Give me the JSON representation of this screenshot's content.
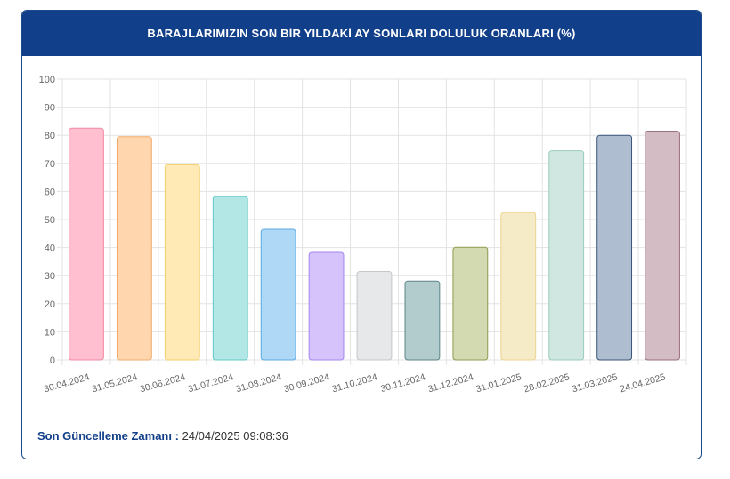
{
  "header": {
    "title": "BARAJLARIMIZIN SON BİR YILDAKİ AY SONLARI DOLULUK ORANLARI (%)"
  },
  "footer": {
    "label": "Son Güncelleme Zamanı :",
    "value": "24/04/2025 09:08:36"
  },
  "chart_data": {
    "type": "bar",
    "title": "BARAJLARIMIZIN SON BİR YILDAKİ AY SONLARI DOLULUK ORANLARI (%)",
    "categories": [
      "30.04.2024",
      "31.05.2024",
      "30.06.2024",
      "31.07.2024",
      "31.08.2024",
      "30.09.2024",
      "31.10.2024",
      "30.11.2024",
      "31.12.2024",
      "31.01.2025",
      "28.02.2025",
      "31.03.2025",
      "24.04.2025"
    ],
    "values": [
      82.5,
      79.5,
      69.5,
      58.2,
      46.5,
      38.3,
      31.5,
      28.1,
      40.1,
      52.5,
      74.5,
      80.0,
      81.5
    ],
    "ylim": [
      0,
      100
    ],
    "yticks": [
      0,
      10,
      20,
      30,
      40,
      50,
      60,
      70,
      80,
      90,
      100
    ],
    "grid": true,
    "colors": {
      "fill": [
        "#ffbfd0",
        "#ffd6ae",
        "#ffe9b4",
        "#b3e7e5",
        "#aed8f6",
        "#d6c3fb",
        "#e6e8ea",
        "#b2cbcd",
        "#d3d9b0",
        "#f6ebc7",
        "#cfe7e0",
        "#aebdd0",
        "#d4bcc4"
      ],
      "stroke": [
        "#f28aa3",
        "#f0aa6a",
        "#f2cf6a",
        "#5fcac6",
        "#5aa9e3",
        "#a585f0",
        "#c4c6c8",
        "#5d8589",
        "#8f9a4f",
        "#ecd390",
        "#98cdbb",
        "#3a5578",
        "#9a6f7e"
      ]
    }
  }
}
